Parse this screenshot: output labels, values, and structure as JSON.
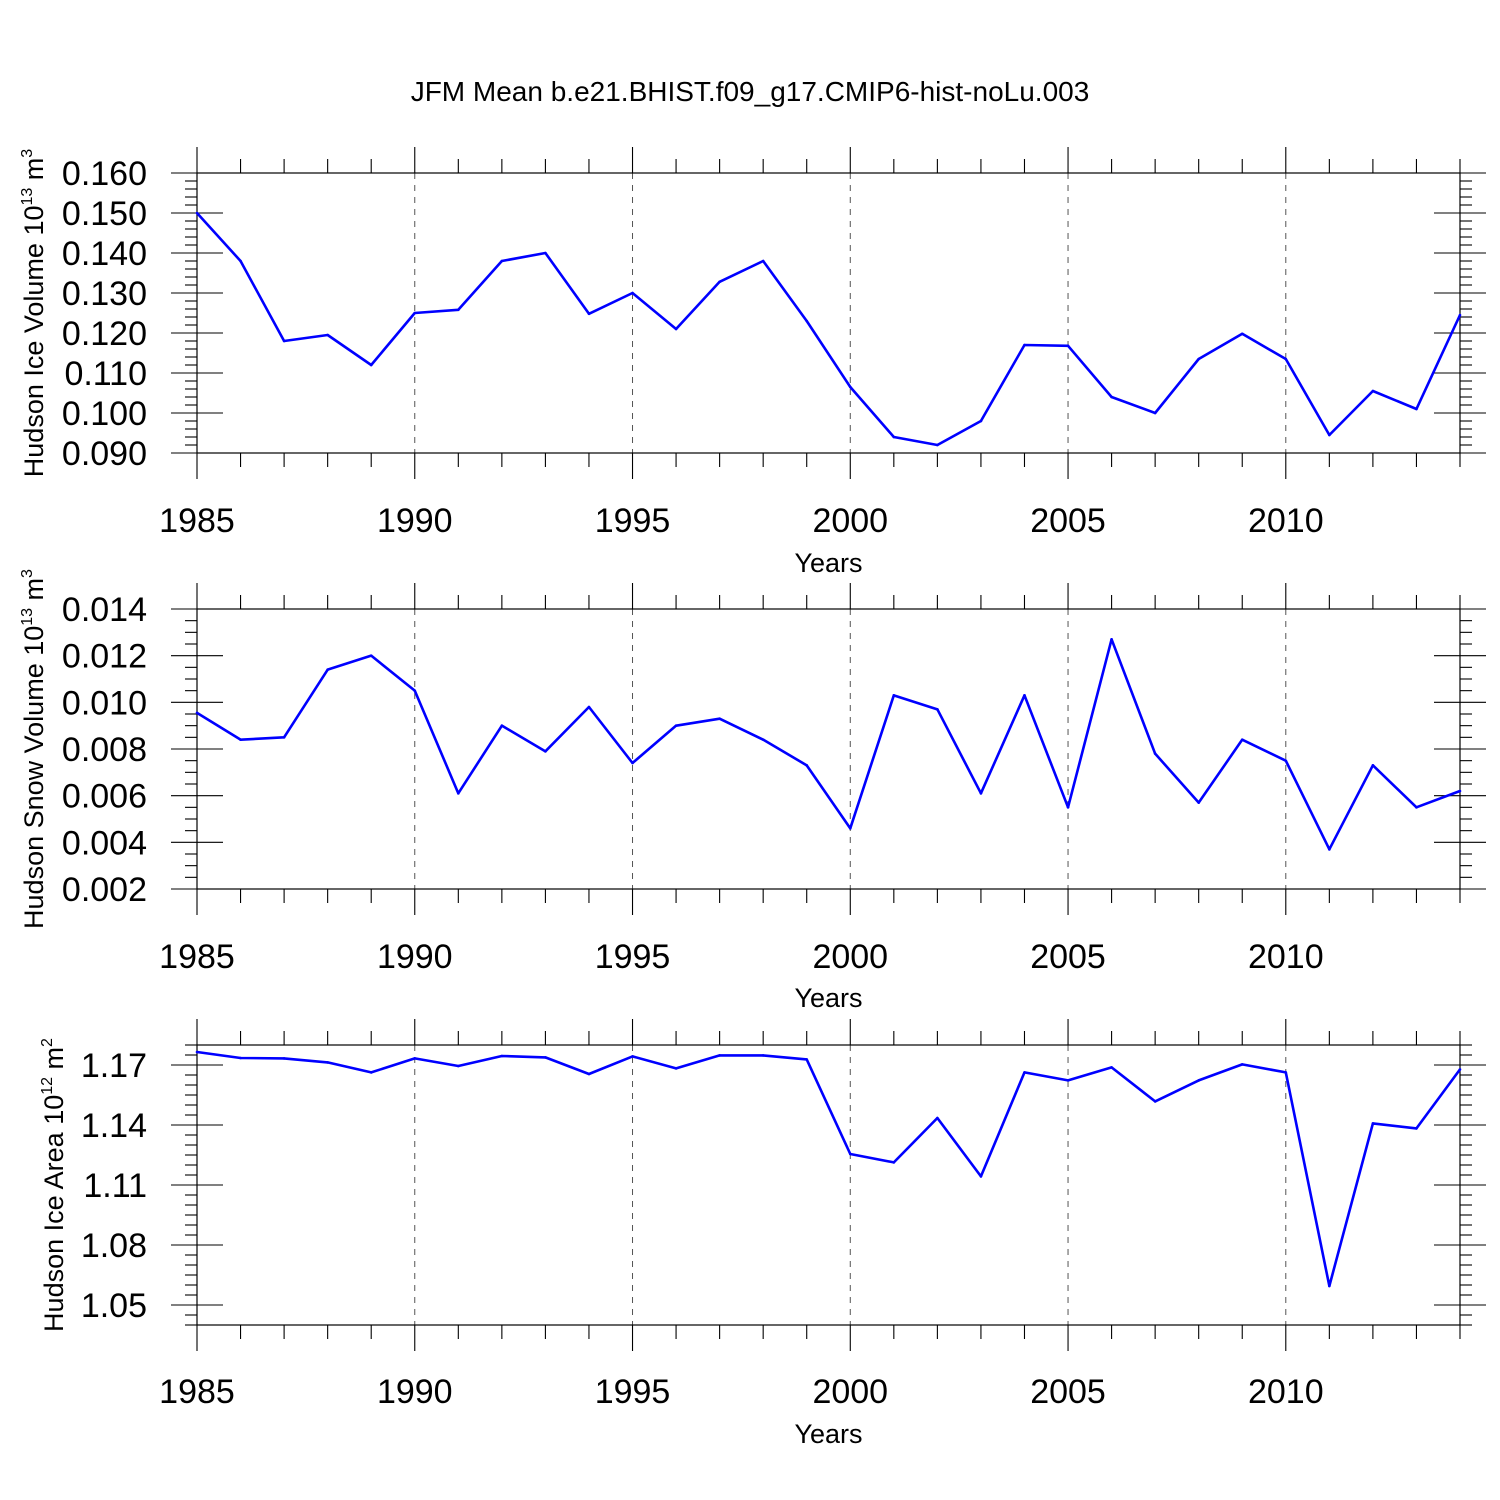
{
  "title": "JFM Mean b.e21.BHIST.f09_g17.CMIP6-hist-noLu.003",
  "colors": {
    "line": "#0000ff",
    "axis": "#000000",
    "grid": "#555555"
  },
  "chart_data": [
    {
      "type": "line",
      "ylabel": "Hudson Ice Volume 10",
      "yunit_exp": "13",
      "yunit": "m",
      "yunit_pow": "3",
      "xlabel": "Years",
      "xlim": [
        1985,
        2014
      ],
      "ylim": [
        0.09,
        0.16
      ],
      "x_ticks": [
        1985,
        1990,
        1995,
        2000,
        2005,
        2010
      ],
      "x_tick_labels": [
        "1985",
        "1990",
        "1995",
        "2000",
        "2005",
        "2010"
      ],
      "y_ticks": [
        0.09,
        0.1,
        0.11,
        0.12,
        0.13,
        0.14,
        0.15,
        0.16
      ],
      "y_tick_labels": [
        "0.090",
        "0.100",
        "0.110",
        "0.120",
        "0.130",
        "0.140",
        "0.150",
        "0.160"
      ],
      "y_minor_step": 0.002,
      "x": [
        1985,
        1986,
        1987,
        1988,
        1989,
        1990,
        1991,
        1992,
        1993,
        1994,
        1995,
        1996,
        1997,
        1998,
        1999,
        2000,
        2001,
        2002,
        2003,
        2004,
        2005,
        2006,
        2007,
        2008,
        2009,
        2010,
        2011,
        2012,
        2013,
        2014
      ],
      "values": [
        0.15,
        0.138,
        0.118,
        0.1195,
        0.112,
        0.125,
        0.1258,
        0.138,
        0.14,
        0.1248,
        0.13,
        0.121,
        0.1328,
        0.138,
        0.123,
        0.1065,
        0.094,
        0.092,
        0.098,
        0.117,
        0.1168,
        0.104,
        0.1,
        0.1135,
        0.1198,
        0.1135,
        0.0945,
        0.1055,
        0.101,
        0.1245
      ]
    },
    {
      "type": "line",
      "ylabel": "Hudson Snow Volume 10",
      "yunit_exp": "13",
      "yunit": "m",
      "yunit_pow": "3",
      "xlabel": "Years",
      "xlim": [
        1985,
        2014
      ],
      "ylim": [
        0.002,
        0.014
      ],
      "x_ticks": [
        1985,
        1990,
        1995,
        2000,
        2005,
        2010
      ],
      "x_tick_labels": [
        "1985",
        "1990",
        "1995",
        "2000",
        "2005",
        "2010"
      ],
      "y_ticks": [
        0.002,
        0.004,
        0.006,
        0.008,
        0.01,
        0.012,
        0.014
      ],
      "y_tick_labels": [
        "0.002",
        "0.004",
        "0.006",
        "0.008",
        "0.010",
        "0.012",
        "0.014"
      ],
      "y_minor_step": 0.0005,
      "x": [
        1985,
        1986,
        1987,
        1988,
        1989,
        1990,
        1991,
        1992,
        1993,
        1994,
        1995,
        1996,
        1997,
        1998,
        1999,
        2000,
        2001,
        2002,
        2003,
        2004,
        2005,
        2006,
        2007,
        2008,
        2009,
        2010,
        2011,
        2012,
        2013,
        2014
      ],
      "values": [
        0.00955,
        0.0084,
        0.0085,
        0.0114,
        0.012,
        0.0105,
        0.0061,
        0.009,
        0.0079,
        0.0098,
        0.0074,
        0.009,
        0.0093,
        0.0084,
        0.0073,
        0.0046,
        0.0103,
        0.0097,
        0.0061,
        0.0103,
        0.0055,
        0.0127,
        0.0078,
        0.0057,
        0.0084,
        0.0075,
        0.0037,
        0.0073,
        0.0055,
        0.0062
      ]
    },
    {
      "type": "line",
      "ylabel": "Hudson Ice Area 10",
      "yunit_exp": "12",
      "yunit": "m",
      "yunit_pow": "2",
      "xlabel": "Years",
      "xlim": [
        1985,
        2014
      ],
      "ylim": [
        1.04,
        1.18
      ],
      "x_ticks": [
        1985,
        1990,
        1995,
        2000,
        2005,
        2010
      ],
      "x_tick_labels": [
        "1985",
        "1990",
        "1995",
        "2000",
        "2005",
        "2010"
      ],
      "y_ticks": [
        1.05,
        1.08,
        1.11,
        1.14,
        1.17
      ],
      "y_tick_labels": [
        "1.05",
        "1.08",
        "1.11",
        "1.14",
        "1.17"
      ],
      "y_minor_step": 0.005,
      "x": [
        1985,
        1986,
        1987,
        1988,
        1989,
        1990,
        1991,
        1992,
        1993,
        1994,
        1995,
        1996,
        1997,
        1998,
        1999,
        2000,
        2001,
        2002,
        2003,
        2004,
        2005,
        2006,
        2007,
        2008,
        2009,
        2010,
        2011,
        2012,
        2013,
        2014
      ],
      "values": [
        1.1765,
        1.1735,
        1.1733,
        1.1713,
        1.1663,
        1.1733,
        1.1695,
        1.1745,
        1.1738,
        1.1655,
        1.1743,
        1.1683,
        1.1748,
        1.1748,
        1.1728,
        1.1255,
        1.1213,
        1.1435,
        1.1143,
        1.1663,
        1.1623,
        1.1688,
        1.1518,
        1.1623,
        1.1703,
        1.1663,
        1.0595,
        1.1408,
        1.1383,
        1.1678
      ]
    }
  ]
}
